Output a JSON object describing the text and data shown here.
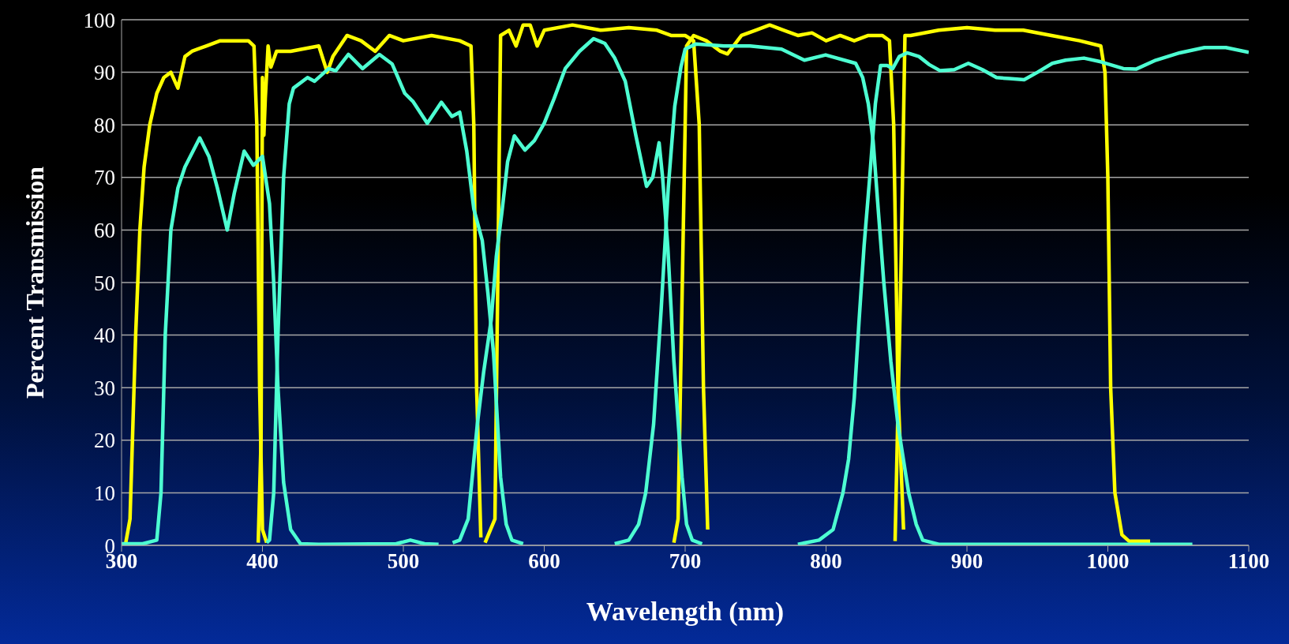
{
  "chart_data": {
    "type": "line",
    "xlabel": "Wavelength (nm)",
    "ylabel": "Percent Transmission",
    "xlim": [
      300,
      1100
    ],
    "xticks": [
      300,
      400,
      500,
      600,
      700,
      800,
      900,
      1000,
      1100
    ],
    "ylim": [
      0,
      100
    ],
    "yticks": [
      0,
      10,
      20,
      30,
      40,
      50,
      60,
      70,
      80,
      90,
      100
    ],
    "grid": "y",
    "marker": "none",
    "line_style": "solid",
    "series": [
      {
        "color": "#ffff00",
        "x": [
          303,
          306,
          310,
          313,
          316,
          320,
          325,
          330,
          335,
          340,
          345,
          350,
          360,
          370,
          380,
          390,
          394,
          396,
          398,
          400,
          403
        ],
        "values": [
          0.5,
          5,
          40,
          60,
          72,
          80,
          86,
          89,
          90,
          87,
          93,
          94,
          95,
          96,
          96,
          96,
          95,
          80,
          30,
          3,
          0.5
        ]
      },
      {
        "color": "#ffff00",
        "x": [
          397,
          399,
          400,
          401,
          402,
          404,
          406,
          410,
          420,
          440,
          446,
          450,
          460,
          470,
          480,
          490,
          500,
          520,
          540,
          548,
          550,
          552,
          555
        ],
        "values": [
          0.5,
          20,
          89,
          78,
          85,
          95,
          91,
          94,
          94,
          95,
          90,
          93,
          97,
          96,
          94,
          97,
          96,
          97,
          96,
          95,
          80,
          30,
          1.5
        ]
      },
      {
        "color": "#ffff00",
        "x": [
          558,
          565,
          567,
          569,
          575,
          580,
          585,
          590,
          595,
          600,
          620,
          640,
          660,
          680,
          690,
          700,
          706,
          710,
          713,
          716
        ],
        "values": [
          0.5,
          5,
          50,
          97,
          98,
          95,
          99,
          99,
          95,
          98,
          99,
          98,
          98.5,
          98,
          97,
          97,
          96,
          80,
          30,
          3
        ]
      },
      {
        "color": "#ffff00",
        "x": [
          692,
          695,
          698,
          701,
          706,
          715,
          725,
          730,
          740,
          750,
          760,
          770,
          780,
          790,
          800,
          810,
          820,
          830,
          840,
          845,
          848,
          851,
          855
        ],
        "values": [
          0.5,
          5,
          50,
          95,
          97,
          96,
          94,
          93.5,
          97,
          98,
          99,
          98,
          97,
          97.5,
          96,
          97,
          96,
          97,
          97,
          96,
          80,
          30,
          3
        ]
      },
      {
        "color": "#ffff00",
        "x": [
          849,
          853,
          856,
          860,
          880,
          900,
          920,
          940,
          960,
          980,
          995,
          998,
          1000,
          1002,
          1005,
          1010,
          1015,
          1030
        ],
        "values": [
          0.8,
          50,
          97,
          97,
          98,
          98.5,
          98,
          98,
          97,
          96,
          95,
          90,
          70,
          30,
          10,
          2,
          0.8,
          0.8
        ]
      },
      {
        "color": "#4dffd2",
        "x": [
          300,
          315,
          325,
          328,
          331,
          335,
          340,
          345,
          355.5,
          362,
          368,
          375,
          380,
          387,
          393.6,
          400,
          405,
          408,
          411,
          415,
          420,
          427,
          440,
          495,
          505,
          515,
          525
        ],
        "values": [
          0.3,
          0.3,
          1,
          10,
          40,
          60,
          68,
          72,
          77.5,
          74,
          68,
          60,
          67,
          75,
          72.3,
          74,
          65,
          50,
          30,
          12,
          3,
          0.3,
          0.2,
          0.3,
          1,
          0.3,
          0.2
        ]
      },
      {
        "color": "#4dffd2",
        "x": [
          403,
          405,
          408,
          411,
          415,
          419,
          422,
          432,
          437,
          447,
          452,
          461,
          471,
          483,
          492,
          501,
          507,
          517,
          527,
          534.5,
          540,
          545,
          550,
          556,
          560,
          564,
          569,
          573,
          577,
          585
        ],
        "values": [
          0.5,
          1,
          10,
          40,
          70,
          84,
          87,
          89,
          88.3,
          90.7,
          90.3,
          93.4,
          90.7,
          93.4,
          91.6,
          86,
          84.4,
          80.3,
          84.3,
          81.6,
          82.4,
          75,
          64,
          58,
          48,
          36.6,
          13,
          4,
          1,
          0.3
        ]
      },
      {
        "color": "#4dffd2",
        "x": [
          535,
          540,
          546,
          552.5,
          557,
          562.4,
          566,
          570,
          574,
          578.8,
          586.3,
          593,
          600,
          607,
          614.9,
          625,
          635,
          643,
          650,
          657.5,
          665,
          672.6,
          677,
          681.5,
          684,
          687.7,
          692,
          697.8,
          701,
          705,
          712
        ],
        "values": [
          0.5,
          1,
          5,
          23,
          33,
          43,
          55,
          63.5,
          73,
          77.9,
          75.2,
          77,
          80.3,
          85,
          90.7,
          94,
          96.4,
          95.5,
          92.7,
          88.3,
          78,
          68.3,
          70,
          76.6,
          70,
          56.7,
          35,
          13,
          4,
          1,
          0.3
        ]
      },
      {
        "color": "#4dffd2",
        "x": [
          650,
          660,
          667,
          672,
          677.6,
          683,
          688,
          692.6,
          697,
          700,
          707.8,
          727.5,
          746,
          768.4,
          784.6,
          799.7,
          821,
          826,
          830,
          833.4,
          837,
          841,
          846,
          851,
          858.6,
          864,
          868.6,
          880,
          1060
        ],
        "values": [
          0.3,
          1,
          4,
          10,
          23,
          45,
          68,
          83.5,
          91,
          94.4,
          95.4,
          95,
          95,
          94.4,
          92.3,
          93.3,
          91.7,
          89,
          84,
          77,
          64,
          50,
          35,
          23,
          10,
          4,
          1,
          0.2,
          0.2
        ]
      },
      {
        "color": "#4dffd2",
        "x": [
          780,
          795,
          805,
          812,
          816,
          820,
          823.5,
          827,
          831,
          835,
          838.7,
          843.4,
          847.3,
          852,
          857.5,
          866,
          873,
          881,
          891,
          901,
          911,
          921,
          930,
          940.6,
          950,
          960.6,
          970,
          983,
          995,
          1011,
          1020,
          1034,
          1051,
          1068.6,
          1083.8,
          1100
        ],
        "values": [
          0.2,
          1,
          3,
          10,
          16.4,
          28,
          43,
          57,
          70,
          84,
          91.3,
          91.3,
          90.7,
          93,
          93.7,
          93,
          91.5,
          90.3,
          90.5,
          91.7,
          90.5,
          89,
          88.8,
          88.6,
          90,
          91.7,
          92.3,
          92.7,
          92,
          90.7,
          90.6,
          92.3,
          93.7,
          94.7,
          94.7,
          93.8
        ]
      }
    ]
  }
}
